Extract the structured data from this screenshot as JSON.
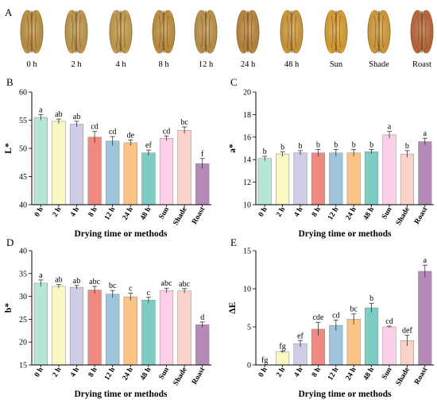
{
  "figure": {
    "panels": [
      "A",
      "B",
      "C",
      "D",
      "E"
    ],
    "photo_labels": [
      "0 h",
      "2 h",
      "4 h",
      "8 h",
      "12 h",
      "24 h",
      "48 h",
      "Sun",
      "Shade",
      "Roast"
    ],
    "photo_colors": [
      "#c89a45",
      "#c9a04e",
      "#cfa450",
      "#c9973f",
      "#c69a4c",
      "#c48d3e",
      "#d9a13a",
      "#e6a92e",
      "#dca43a",
      "#c46a3a"
    ],
    "bar_colors": [
      "#b7e6d6",
      "#fbf7c0",
      "#cfcce6",
      "#f08a80",
      "#9ec4de",
      "#fbc484",
      "#7fcdc2",
      "#fbd0e8",
      "#fcd3c9",
      "#b58ab8"
    ],
    "bar_stroke": "#888888"
  },
  "chart_data": [
    {
      "panel": "B",
      "type": "bar",
      "categories": [
        "0 h",
        "2 h",
        "4 h",
        "8 h",
        "12 h",
        "24 h",
        "48 h",
        "Sun",
        "Shade",
        "Roast"
      ],
      "values": [
        55.5,
        54.8,
        54.3,
        52.0,
        51.3,
        51.0,
        49.2,
        51.8,
        53.2,
        47.3
      ],
      "errors": [
        0.5,
        0.4,
        0.5,
        1.0,
        0.8,
        0.5,
        0.5,
        0.4,
        0.6,
        0.9
      ],
      "letters": [
        "a",
        "ab",
        "ab",
        "cd",
        "cd",
        "de",
        "ef",
        "cd",
        "bc",
        "f"
      ],
      "xlabel": "Drying time or methods",
      "ylabel": "L*",
      "ylim": [
        40,
        60
      ],
      "yticks": [
        40,
        45,
        50,
        55,
        60
      ],
      "grid": false
    },
    {
      "panel": "C",
      "type": "bar",
      "categories": [
        "0 h",
        "2 h",
        "4 h",
        "8 h",
        "12 h",
        "24 h",
        "48 h",
        "Sun",
        "Shade",
        "Roast"
      ],
      "values": [
        14.1,
        14.5,
        14.6,
        14.6,
        14.6,
        14.6,
        14.7,
        16.2,
        14.5,
        15.6
      ],
      "errors": [
        0.2,
        0.2,
        0.2,
        0.3,
        0.3,
        0.3,
        0.2,
        0.3,
        0.3,
        0.3
      ],
      "letters": [
        "b",
        "b",
        "b",
        "b",
        "b",
        "b",
        "b",
        "a",
        "b",
        "a"
      ],
      "xlabel": "Drying time or methods",
      "ylabel": "a*",
      "ylim": [
        10,
        20
      ],
      "yticks": [
        10,
        12,
        14,
        16,
        18,
        20
      ],
      "grid": false
    },
    {
      "panel": "D",
      "type": "bar",
      "categories": [
        "0 h",
        "2 h",
        "4 h",
        "8 h",
        "12 h",
        "24 h",
        "48 h",
        "Sun",
        "Shade",
        "Roast"
      ],
      "values": [
        32.9,
        32.2,
        32.0,
        31.4,
        30.5,
        29.9,
        29.2,
        31.3,
        31.2,
        23.8
      ],
      "errors": [
        0.7,
        0.4,
        0.4,
        0.8,
        0.8,
        0.8,
        0.6,
        0.5,
        0.5,
        0.6
      ],
      "letters": [
        "a",
        "ab",
        "ab",
        "abc",
        "bc",
        "c",
        "c",
        "abc",
        "abc",
        "d"
      ],
      "xlabel": "Drying time or methods",
      "ylabel": "b*",
      "ylim": [
        15,
        40
      ],
      "yticks": [
        15,
        20,
        25,
        30,
        35,
        40
      ],
      "grid": false
    },
    {
      "panel": "E",
      "type": "bar",
      "categories": [
        "0 h",
        "2 h",
        "4 h",
        "8 h",
        "12 h",
        "24 h",
        "48 h",
        "Sun",
        "Shade",
        "Roast"
      ],
      "values": [
        0,
        1.7,
        2.8,
        4.7,
        5.2,
        6.0,
        7.5,
        5.0,
        3.2,
        12.3
      ],
      "errors": [
        0,
        0.1,
        0.4,
        0.9,
        0.7,
        0.7,
        0.6,
        0.1,
        0.7,
        0.8
      ],
      "letters": [
        "fg",
        "fg",
        "ef",
        "cde",
        "cd",
        "bc",
        "b",
        "cd",
        "def",
        "a"
      ],
      "xlabel": "Drying time or methods",
      "ylabel": "ΔE",
      "ylim": [
        0,
        15
      ],
      "yticks": [
        0,
        5,
        10,
        15
      ],
      "grid": false
    }
  ]
}
